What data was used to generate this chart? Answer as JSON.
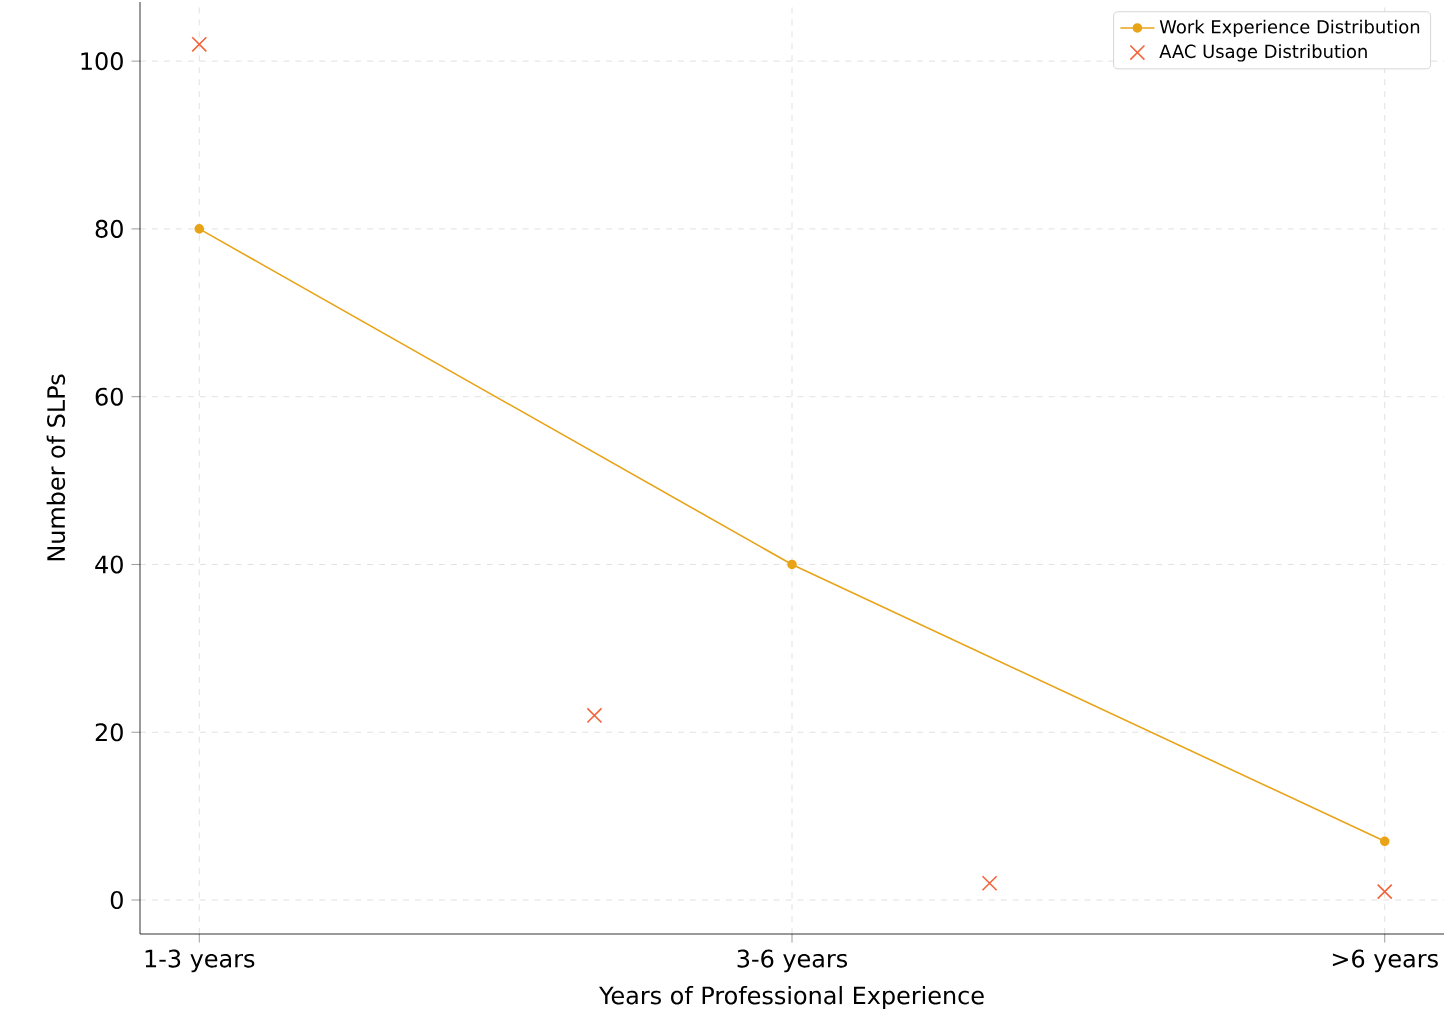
{
  "chart_data": {
    "type": "line",
    "xlabel": "Years of Professional Experience",
    "ylabel": "Number of SLPs",
    "categories": [
      "1-3 years",
      null,
      null,
      "3-6 years",
      null,
      null,
      ">6 years"
    ],
    "ylim": [
      -4.05,
      107.05
    ],
    "yticks": [
      0,
      20,
      40,
      60,
      80,
      100
    ],
    "series": [
      {
        "name": "Work Experience Distribution",
        "color": "#e8a317",
        "marker": "circle",
        "line_style": "solid",
        "values": [
          80,
          null,
          null,
          40,
          null,
          null,
          7
        ]
      },
      {
        "name": "AAC Usage Distribution",
        "type": "scatter",
        "color": "#f2643a",
        "marker": "cross",
        "values": [
          102,
          null,
          22,
          null,
          2,
          null,
          1
        ]
      }
    ],
    "grid": true,
    "legend": "top right"
  }
}
